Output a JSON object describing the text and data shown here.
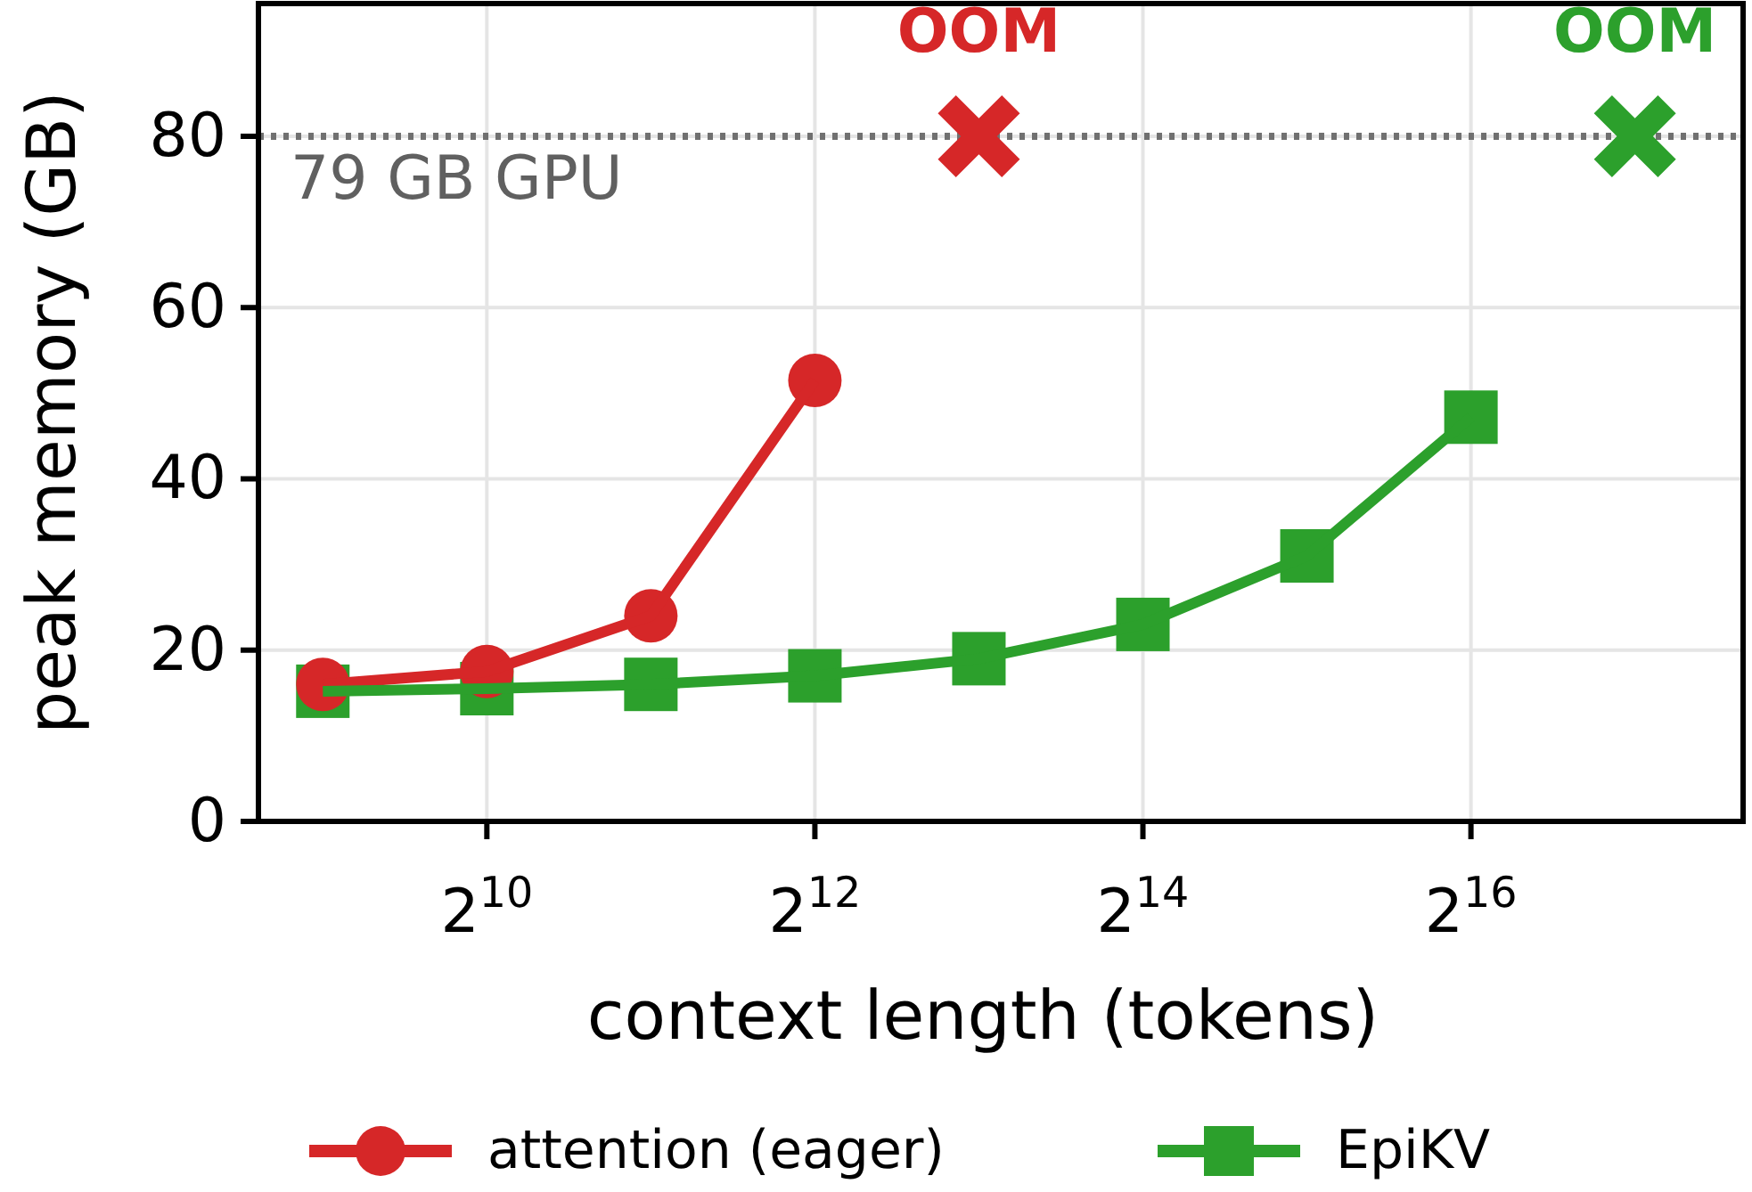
{
  "chart_data": {
    "type": "line",
    "xlabel": "context length (tokens)",
    "ylabel": "peak memory (GB)",
    "log": "x",
    "xlim": [
      390,
      207000
    ],
    "ylim": [
      0,
      95.5
    ],
    "xticks": [
      {
        "value": 1024,
        "label": "2$^{10}$"
      },
      {
        "value": 4096,
        "label": "2$^{12}$"
      },
      {
        "value": 16384,
        "label": "2$^{14}$"
      },
      {
        "value": 65536,
        "label": "2$^{16}$"
      }
    ],
    "yticks": [
      0,
      20,
      40,
      60,
      80
    ],
    "grid": true,
    "legend": "bottom",
    "series": [
      {
        "name": "attention (eager)",
        "color": "#d62728",
        "marker": "circle",
        "x": [
          512,
          1024,
          2048,
          4096
        ],
        "values": [
          16,
          17.5,
          24,
          51.5
        ]
      },
      {
        "name": "EpiKV",
        "color": "#2ca02c",
        "marker": "square",
        "x": [
          512,
          1024,
          2048,
          4096,
          8192,
          16384,
          32768,
          65536
        ],
        "values": [
          15.2,
          15.5,
          16,
          17,
          19,
          23,
          31,
          47.2
        ]
      },
      {
        "type": "scatter",
        "color": "#d62728",
        "marker": "cross",
        "x": [
          8192
        ],
        "values": [
          80
        ]
      },
      {
        "type": "scatter",
        "color": "#2ca02c",
        "marker": "cross",
        "x": [
          131072
        ],
        "values": [
          80
        ]
      }
    ],
    "ref_lines": [
      {
        "axis": "y",
        "value": 80,
        "label": "79 GB GPU",
        "color": "#707070",
        "line_style": "dotted"
      }
    ],
    "annotations": [
      {
        "text": "OOM",
        "x": 8192,
        "y": 80
      },
      {
        "text": "OOM",
        "x": 131072,
        "y": 80
      }
    ]
  }
}
